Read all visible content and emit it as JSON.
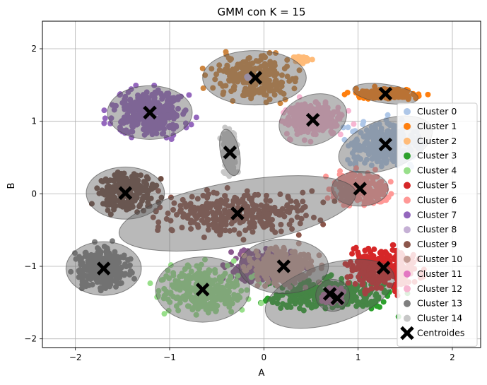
{
  "chart_data": {
    "type": "scatter",
    "title": "GMM con K = 15",
    "xlabel": "A",
    "ylabel": "B",
    "xlim": [
      -2.35,
      2.3
    ],
    "ylim": [
      -2.12,
      2.38
    ],
    "xticks": [
      -2,
      -1,
      0,
      1,
      2
    ],
    "yticks": [
      -2,
      -1,
      0,
      1,
      2
    ],
    "xtick_labels": [
      "−2",
      "−1",
      "0",
      "1",
      "2"
    ],
    "ytick_labels": [
      "−2",
      "−1",
      "0",
      "1",
      "2"
    ],
    "grid": true,
    "legend_position": "right",
    "series": [
      {
        "name": "Cluster 0",
        "color": "#aec7e8",
        "centroid": [
          1.29,
          0.68
        ],
        "spread": [
          0.26,
          0.2
        ],
        "ellipse": {
          "w": 1.04,
          "h": 0.68,
          "angle": 20
        }
      },
      {
        "name": "Cluster 1",
        "color": "#ff7f0e",
        "centroid": [
          1.29,
          1.38
        ],
        "spread": [
          0.23,
          0.05
        ],
        "ellipse": {
          "w": 0.7,
          "h": 0.26,
          "angle": -8
        }
      },
      {
        "name": "Cluster 2",
        "color": "#ffbb78",
        "centroid": [
          0.4,
          1.85
        ],
        "spread": [
          0.06,
          0.03
        ],
        "ellipse": null
      },
      {
        "name": "Cluster 3",
        "color": "#2ca02c",
        "centroid": [
          0.7,
          -1.38
        ],
        "spread": [
          0.45,
          0.15
        ],
        "ellipse": {
          "w": 1.42,
          "h": 0.82,
          "angle": 17
        }
      },
      {
        "name": "Cluster 4",
        "color": "#98df8a",
        "centroid": [
          -0.65,
          -1.32
        ],
        "spread": [
          0.3,
          0.22
        ],
        "ellipse": {
          "w": 1.0,
          "h": 0.9,
          "angle": 0
        }
      },
      {
        "name": "Cluster 5",
        "color": "#d62728",
        "centroid": [
          1.27,
          -1.02
        ],
        "spread": [
          0.25,
          0.2
        ],
        "ellipse": null
      },
      {
        "name": "Cluster 6",
        "color": "#ff9896",
        "centroid": [
          1.02,
          0.07
        ],
        "spread": [
          0.2,
          0.15
        ],
        "ellipse": {
          "w": 0.6,
          "h": 0.48,
          "angle": 0
        }
      },
      {
        "name": "Cluster 7",
        "color": "#9467bd",
        "centroid": [
          -1.21,
          1.12
        ],
        "spread": [
          0.26,
          0.22
        ],
        "ellipse": {
          "w": 0.9,
          "h": 0.74,
          "angle": 0
        }
      },
      {
        "name": "Cluster 8",
        "color": "#c5b0d5",
        "centroid": [
          -0.17,
          1.61
        ],
        "spread": [
          0.01,
          0.01
        ],
        "ellipse": null
      },
      {
        "name": "Cluster 9",
        "color": "#8c564b",
        "centroid": [
          -0.28,
          -0.27
        ],
        "spread": [
          0.55,
          0.2
        ],
        "ellipse": {
          "w": 2.55,
          "h": 0.88,
          "angle": 10
        }
      },
      {
        "name": "Cluster 10",
        "color": "#c49c94",
        "centroid": [
          0.21,
          -1.0
        ],
        "spread": [
          0.24,
          0.18
        ],
        "ellipse": {
          "w": 0.95,
          "h": 0.75,
          "angle": 0
        }
      },
      {
        "name": "Cluster 11",
        "color": "#e377c2",
        "centroid": [
          0.73,
          -1.4
        ],
        "spread": [
          0.08,
          0.07
        ],
        "ellipse": {
          "w": 0.36,
          "h": 0.44,
          "angle": 0
        }
      },
      {
        "name": "Cluster 12",
        "color": "#f7b6d2",
        "centroid": [
          0.52,
          1.02
        ],
        "spread": [
          0.22,
          0.16
        ],
        "ellipse": {
          "w": 0.74,
          "h": 0.68,
          "angle": 20
        }
      },
      {
        "name": "Cluster 13",
        "color": "#7f7f7f",
        "centroid": [
          -1.7,
          -1.03
        ],
        "spread": [
          0.2,
          0.2
        ],
        "ellipse": {
          "w": 0.8,
          "h": 0.74,
          "angle": 0
        }
      },
      {
        "name": "Cluster 14",
        "color": "#c7c7c7",
        "centroid": [
          -0.36,
          0.57
        ],
        "spread": [
          0.05,
          0.2
        ],
        "ellipse": {
          "w": 0.2,
          "h": 0.65,
          "angle": 12
        }
      }
    ],
    "extra_blobs": [
      {
        "color": "#cd853f",
        "center": [
          -0.1,
          1.6
        ],
        "spread": [
          0.3,
          0.2
        ],
        "ellipse": {
          "w": 1.1,
          "h": 0.75,
          "angle": 0
        }
      },
      {
        "color": "#6d4c41",
        "center": [
          -1.47,
          0.01
        ],
        "spread": [
          0.22,
          0.18
        ],
        "ellipse": {
          "w": 0.83,
          "h": 0.72,
          "angle": 0
        }
      },
      {
        "color": "#8b5a8f",
        "center": [
          0.0,
          -1.0
        ],
        "spread": [
          0.25,
          0.18
        ],
        "ellipse": null
      }
    ],
    "centroids": [
      [
        1.29,
        0.68
      ],
      [
        1.29,
        1.38
      ],
      [
        -0.09,
        1.6
      ],
      [
        0.78,
        -1.44
      ],
      [
        -0.65,
        -1.32
      ],
      [
        1.27,
        -1.02
      ],
      [
        1.02,
        0.07
      ],
      [
        -1.21,
        1.12
      ],
      [
        -1.47,
        0.01
      ],
      [
        -0.28,
        -0.27
      ],
      [
        0.21,
        -1.0
      ],
      [
        0.7,
        -1.38
      ],
      [
        0.52,
        1.02
      ],
      [
        -1.7,
        -1.03
      ],
      [
        -0.36,
        0.57
      ]
    ],
    "centroid_label": "Centroides"
  }
}
